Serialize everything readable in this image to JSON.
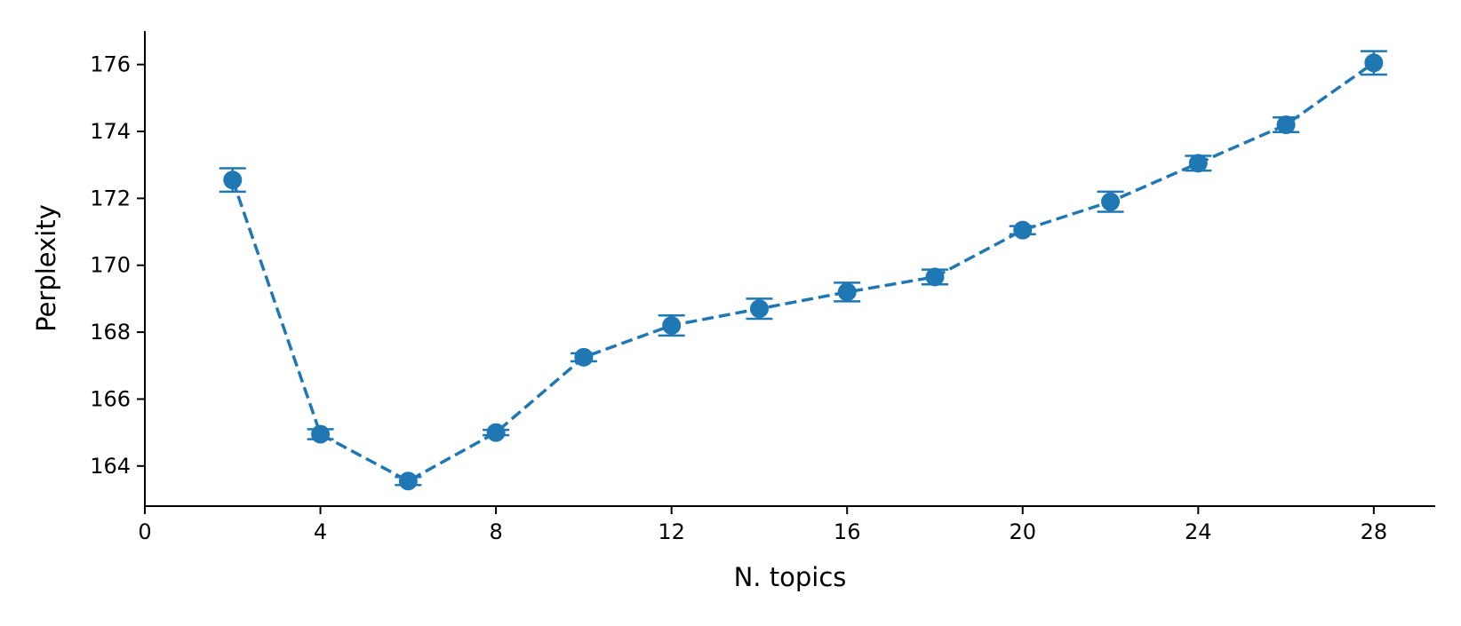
{
  "chart_data": {
    "type": "line",
    "title": "",
    "xlabel": "N. topics",
    "ylabel": "Perplexity",
    "xlim": [
      0,
      29.4
    ],
    "ylim": [
      162.8,
      177.0
    ],
    "xticks": [
      0,
      4,
      8,
      12,
      16,
      20,
      24,
      28
    ],
    "yticks": [
      164,
      166,
      168,
      170,
      172,
      174,
      176
    ],
    "grid": false,
    "legend": false,
    "line_style": "dashed",
    "marker": "circle",
    "color": "#1f77b4",
    "series": [
      {
        "x": [
          2,
          4,
          6,
          8,
          10,
          12,
          14,
          16,
          18,
          20,
          22,
          24,
          26,
          28
        ],
        "values": [
          172.55,
          164.95,
          163.55,
          165.0,
          167.25,
          168.2,
          168.7,
          169.2,
          169.65,
          171.05,
          171.9,
          173.05,
          174.2,
          176.05
        ],
        "error": [
          0.35,
          0.15,
          0.12,
          0.08,
          0.12,
          0.3,
          0.3,
          0.28,
          0.22,
          0.12,
          0.3,
          0.22,
          0.22,
          0.35
        ]
      }
    ]
  }
}
